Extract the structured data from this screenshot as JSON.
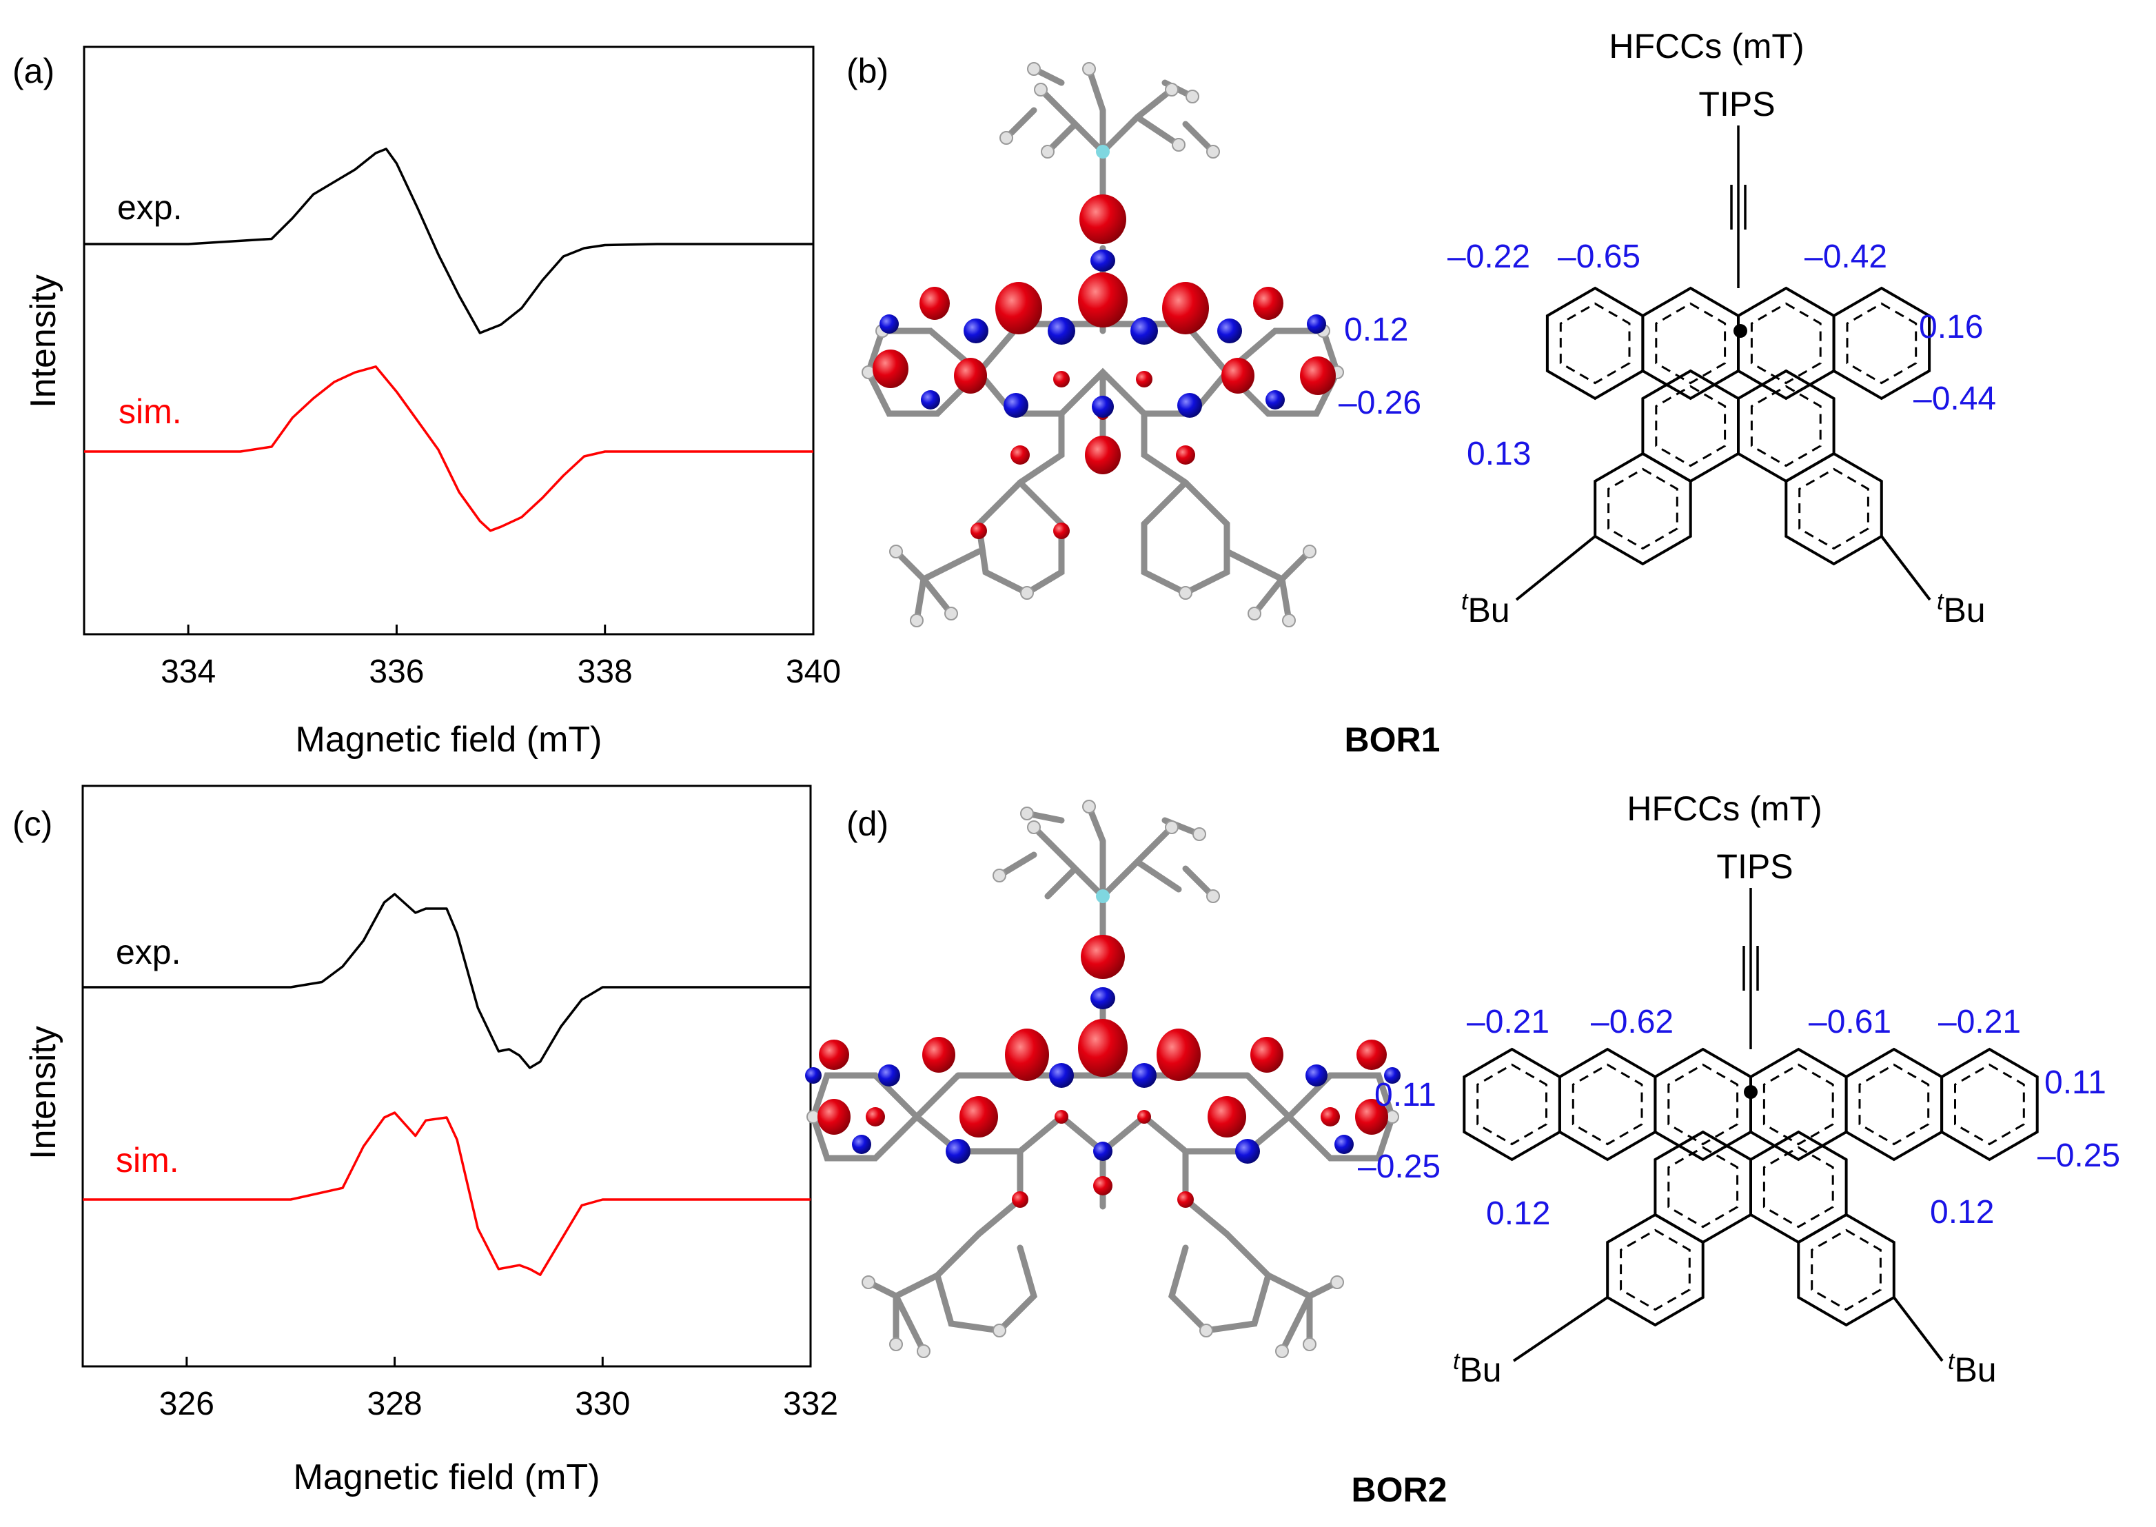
{
  "colors": {
    "experimental": "#000000",
    "simulated": "#ff0000",
    "hfcc_text": "#1a14e6",
    "spin_positive": "#e30010",
    "spin_negative": "#1010dd",
    "frame": "#000000"
  },
  "panels": {
    "a": {
      "label": "(a)"
    },
    "b": {
      "label": "(b)",
      "header": "HFCCs (mT)",
      "substituent": "TIPS",
      "compound": "BOR1",
      "tbu_sup": "t",
      "tbu_main": "Bu",
      "hfccs": [
        "–0.22",
        "–0.65",
        "–0.42",
        "0.12",
        "0.16",
        "–0.26",
        "–0.44",
        "0.13"
      ]
    },
    "c": {
      "label": "(c)"
    },
    "d": {
      "label": "(d)",
      "header": "HFCCs (mT)",
      "substituent": "TIPS",
      "compound": "BOR2",
      "tbu_sup": "t",
      "tbu_main": "Bu",
      "hfccs": [
        "–0.21",
        "–0.62",
        "–0.61",
        "–0.21",
        "0.11",
        "0.11",
        "–0.25",
        "–0.25",
        "0.12",
        "0.12"
      ]
    }
  },
  "chart_data": [
    {
      "type": "line",
      "panel": "a",
      "xlabel": "Magnetic field (mT)",
      "ylabel": "Intensity",
      "xlim": [
        333,
        340
      ],
      "xticks": [
        334,
        336,
        338,
        340
      ],
      "grid": false,
      "series": [
        {
          "name": "exp.",
          "role": "experimental",
          "x": [
            333.0,
            334.0,
            334.8,
            335.0,
            335.2,
            335.4,
            335.6,
            335.8,
            335.9,
            336.0,
            336.2,
            336.4,
            336.6,
            336.8,
            337.0,
            337.2,
            337.4,
            337.6,
            337.8,
            338.0,
            338.5,
            340.0
          ],
          "y": [
            0.0,
            0.0,
            0.05,
            0.25,
            0.48,
            0.6,
            0.72,
            0.88,
            0.92,
            0.78,
            0.35,
            -0.1,
            -0.5,
            -0.86,
            -0.78,
            -0.62,
            -0.35,
            -0.12,
            -0.04,
            -0.01,
            0.0,
            0.0
          ]
        },
        {
          "name": "sim.",
          "role": "simulated",
          "x": [
            333.0,
            334.5,
            334.8,
            335.0,
            335.2,
            335.4,
            335.6,
            335.8,
            336.0,
            336.2,
            336.4,
            336.6,
            336.8,
            336.9,
            337.0,
            337.2,
            337.4,
            337.6,
            337.8,
            338.0,
            340.0
          ],
          "y": [
            0.0,
            0.0,
            0.05,
            0.35,
            0.55,
            0.72,
            0.82,
            0.88,
            0.62,
            0.32,
            0.02,
            -0.42,
            -0.72,
            -0.82,
            -0.78,
            -0.68,
            -0.48,
            -0.25,
            -0.05,
            0.0,
            0.0
          ]
        }
      ]
    },
    {
      "type": "line",
      "panel": "c",
      "xlabel": "Magnetic field (mT)",
      "ylabel": "Intensity",
      "xlim": [
        325,
        332
      ],
      "xticks": [
        326,
        328,
        330,
        332
      ],
      "grid": false,
      "series": [
        {
          "name": "exp.",
          "role": "experimental",
          "x": [
            325.0,
            327.0,
            327.3,
            327.5,
            327.7,
            327.9,
            328.0,
            328.2,
            328.3,
            328.5,
            328.6,
            328.8,
            329.0,
            329.1,
            329.2,
            329.3,
            329.4,
            329.6,
            329.8,
            330.0,
            330.2,
            332.0
          ],
          "y": [
            0.0,
            0.0,
            0.05,
            0.2,
            0.45,
            0.82,
            0.9,
            0.72,
            0.76,
            0.76,
            0.52,
            -0.2,
            -0.62,
            -0.6,
            -0.66,
            -0.78,
            -0.72,
            -0.38,
            -0.12,
            0.0,
            0.0,
            0.0
          ]
        },
        {
          "name": "sim.",
          "role": "simulated",
          "x": [
            325.0,
            327.0,
            327.5,
            327.7,
            327.9,
            328.0,
            328.2,
            328.3,
            328.5,
            328.6,
            328.8,
            329.0,
            329.1,
            329.2,
            329.3,
            329.4,
            329.6,
            329.8,
            330.0,
            332.0
          ],
          "y": [
            0.0,
            0.0,
            0.12,
            0.55,
            0.85,
            0.9,
            0.66,
            0.82,
            0.85,
            0.62,
            -0.3,
            -0.72,
            -0.7,
            -0.68,
            -0.72,
            -0.78,
            -0.42,
            -0.06,
            0.0,
            0.0
          ]
        }
      ]
    }
  ]
}
